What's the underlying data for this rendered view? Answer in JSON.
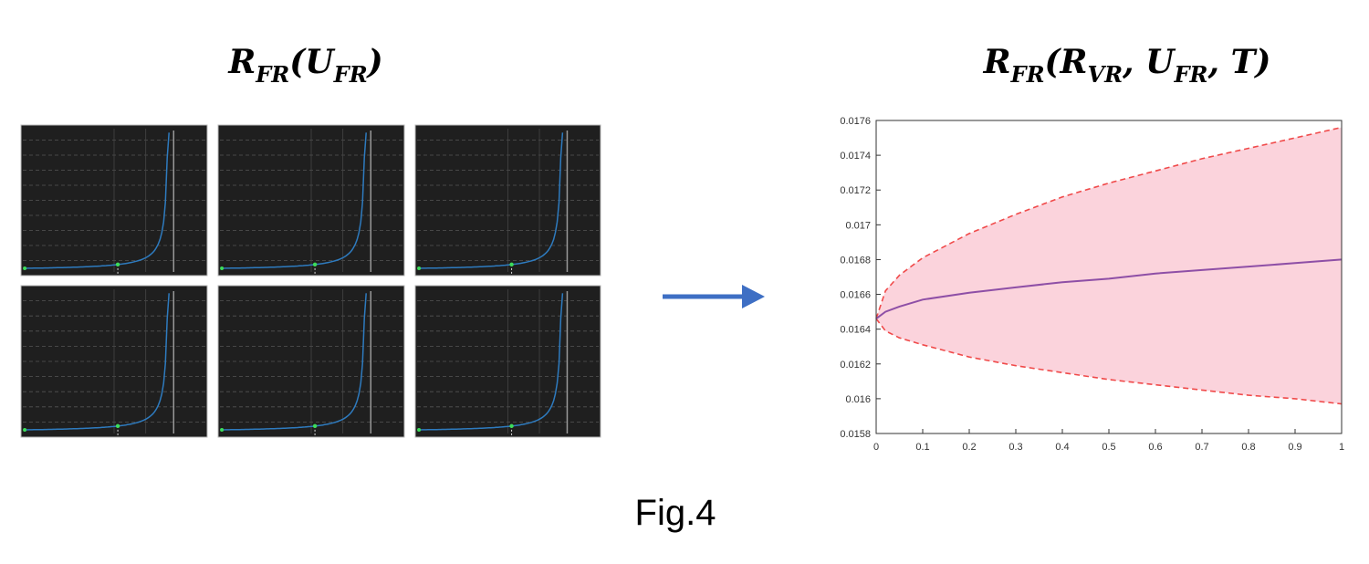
{
  "left_title": [
    {
      "text": "R",
      "sub": "FR"
    },
    {
      "text": "(U",
      "sub": "FR"
    },
    {
      "text": ")"
    }
  ],
  "chart_data": {
    "type": "band",
    "title": [
      {
        "text": "R",
        "sub": "FR"
      },
      {
        "text": "(R",
        "sub": "VR"
      },
      {
        "text": ", U",
        "sub": "FR"
      },
      {
        "text": ", T)"
      }
    ],
    "x": [
      0,
      0.02,
      0.05,
      0.1,
      0.2,
      0.3,
      0.4,
      0.5,
      0.6,
      0.7,
      0.8,
      0.9,
      1
    ],
    "series": [
      {
        "color": "#f04a4a",
        "dashed": true,
        "values": [
          0.01646,
          0.01662,
          0.01671,
          0.01681,
          0.01695,
          0.01706,
          0.01716,
          0.01724,
          0.01731,
          0.01738,
          0.01744,
          0.0175,
          0.01756
        ]
      },
      {
        "color": "#f04a4a",
        "dashed": true,
        "values": [
          0.01646,
          0.01639,
          0.01635,
          0.01631,
          0.01624,
          0.01619,
          0.01615,
          0.01611,
          0.01608,
          0.01605,
          0.01602,
          0.016,
          0.01597
        ]
      },
      {
        "color": "#8e4fa6",
        "dashed": false,
        "values": [
          0.01646,
          0.0165,
          0.01653,
          0.01657,
          0.01661,
          0.01664,
          0.01667,
          0.01669,
          0.01672,
          0.01674,
          0.01676,
          0.01678,
          0.0168
        ]
      }
    ],
    "band_fill": "#fbd3dc",
    "xlim": [
      0,
      1
    ],
    "ylim": [
      0.0158,
      0.0176
    ],
    "xticks": [
      0,
      0.1,
      0.2,
      0.3,
      0.4,
      0.5,
      0.6,
      0.7,
      0.8,
      0.9,
      1
    ],
    "yticks": [
      0.0158,
      0.016,
      0.0162,
      0.0164,
      0.0166,
      0.0168,
      0.017,
      0.0172,
      0.0174,
      0.0176
    ]
  },
  "caption": "Fig.4"
}
